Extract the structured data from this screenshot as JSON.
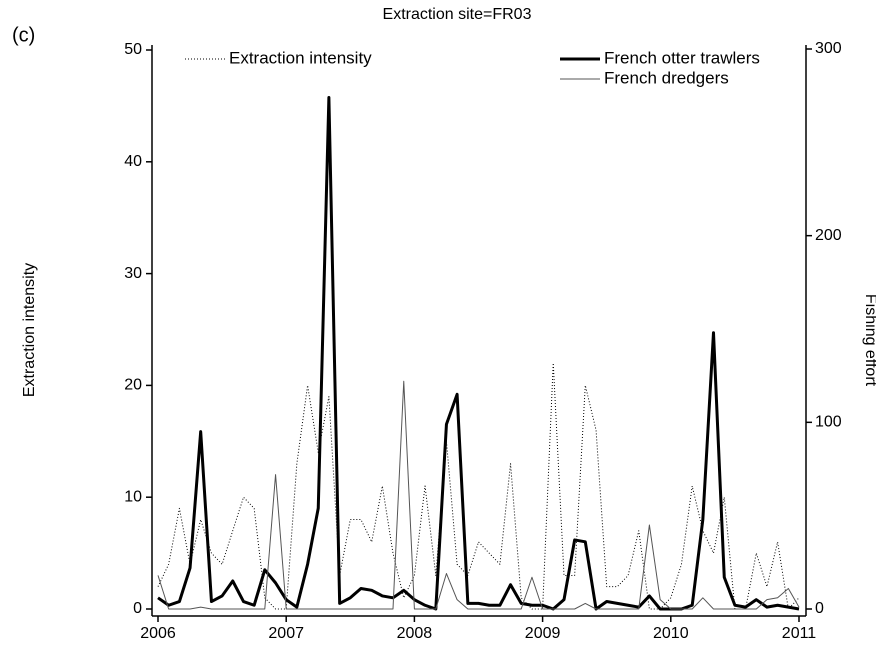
{
  "chart_data": {
    "type": "line",
    "label": "(c)",
    "title": "Extraction site=FR03",
    "y_label": "Extraction intensity",
    "y2_label": "Fishing effort",
    "x": [
      2006,
      2006.083,
      2006.167,
      2006.25,
      2006.333,
      2006.417,
      2006.5,
      2006.583,
      2006.667,
      2006.75,
      2006.833,
      2006.917,
      2007,
      2007.083,
      2007.167,
      2007.25,
      2007.333,
      2007.417,
      2007.5,
      2007.583,
      2007.667,
      2007.75,
      2007.833,
      2007.917,
      2008,
      2008.083,
      2008.167,
      2008.25,
      2008.333,
      2008.417,
      2008.5,
      2008.583,
      2008.667,
      2008.75,
      2008.833,
      2008.917,
      2009,
      2009.083,
      2009.167,
      2009.25,
      2009.333,
      2009.417,
      2009.5,
      2009.583,
      2009.667,
      2009.75,
      2009.833,
      2009.917,
      2010,
      2010.083,
      2010.167,
      2010.25,
      2010.333,
      2010.417,
      2010.5,
      2010.583,
      2010.667,
      2010.75,
      2010.833,
      2010.917,
      2011
    ],
    "xlim": [
      2006,
      2011
    ],
    "xticks": [
      2006,
      2007,
      2008,
      2009,
      2010,
      2011
    ],
    "ylim": [
      0,
      50
    ],
    "yticks": [
      0,
      10,
      20,
      30,
      40,
      50
    ],
    "y2lim": [
      0,
      300
    ],
    "y2ticks": [
      0,
      100,
      200,
      300
    ],
    "series": [
      {
        "name": "Extraction intensity",
        "color": "#000000",
        "line_style": "dotted",
        "line_width": 1,
        "axis": "y",
        "values": [
          2,
          4,
          9,
          4,
          8,
          5,
          4,
          7,
          10,
          9,
          1,
          0,
          0,
          13,
          20,
          14,
          19,
          3,
          8,
          8,
          6,
          11,
          5,
          1,
          3,
          11,
          3,
          15,
          4,
          3,
          6,
          5,
          4,
          13,
          1,
          0,
          0,
          22,
          3,
          3,
          20,
          16,
          2,
          2,
          3,
          7,
          0,
          0,
          1,
          4,
          11,
          7,
          5,
          10,
          0,
          0,
          5,
          2,
          6,
          0,
          1
        ]
      },
      {
        "name": "French otter trawlers",
        "color": "#000000",
        "line_style": "solid",
        "line_width": 3,
        "axis": "y2",
        "values": [
          6,
          2,
          4,
          22,
          95,
          4,
          7,
          15,
          4,
          2,
          21,
          14,
          5,
          1,
          24,
          54,
          274,
          3,
          6,
          11,
          10,
          7,
          6,
          10,
          5,
          2,
          0,
          99,
          115,
          3,
          3,
          2,
          2,
          13,
          3,
          2,
          2,
          0,
          5,
          37,
          36,
          0,
          4,
          3,
          2,
          1,
          7,
          0,
          0,
          0,
          2,
          48,
          148,
          17,
          2,
          1,
          5,
          1,
          2,
          1,
          0
        ]
      },
      {
        "name": "French dredgers",
        "color": "#555555",
        "line_style": "solid",
        "line_width": 1,
        "axis": "y2",
        "values": [
          18,
          0,
          0,
          0,
          1,
          0,
          0,
          0,
          0,
          0,
          0,
          72,
          0,
          0,
          0,
          0,
          0,
          0,
          0,
          0,
          0,
          0,
          0,
          122,
          0,
          0,
          0,
          19,
          5,
          0,
          0,
          0,
          0,
          0,
          0,
          17,
          0,
          0,
          0,
          0,
          3,
          0,
          0,
          0,
          0,
          0,
          45,
          5,
          0,
          0,
          0,
          6,
          0,
          0,
          0,
          0,
          0,
          5,
          6,
          11,
          1
        ]
      }
    ]
  }
}
